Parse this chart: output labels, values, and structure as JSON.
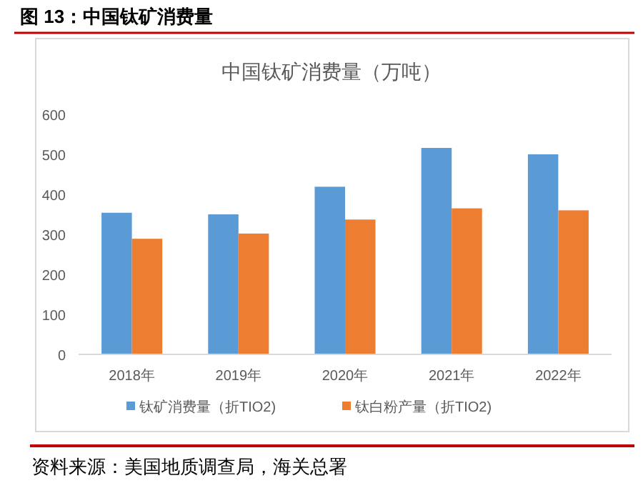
{
  "chart_data": {
    "type": "bar",
    "title": "中国钛矿消费量（万吨）",
    "annotations": [
      "图 13：中国钛矿消费量",
      "资料来源：美国地质调查局，海关总署"
    ],
    "categories": [
      "2018年",
      "2019年",
      "2020年",
      "2021年",
      "2022年"
    ],
    "series": [
      {
        "name": "钛矿消费量（折TIO2)",
        "color": "#5b9bd5",
        "values": [
          354,
          350,
          419,
          516,
          500
        ]
      },
      {
        "name": "钛白粉产量（折TIO2)",
        "color": "#ed7d31",
        "values": [
          289,
          302,
          337,
          365,
          360
        ]
      }
    ],
    "ylim": [
      0,
      600
    ],
    "yticks": [
      0,
      100,
      200,
      300,
      400,
      500,
      600
    ],
    "grid": false,
    "legend": "bottom"
  }
}
